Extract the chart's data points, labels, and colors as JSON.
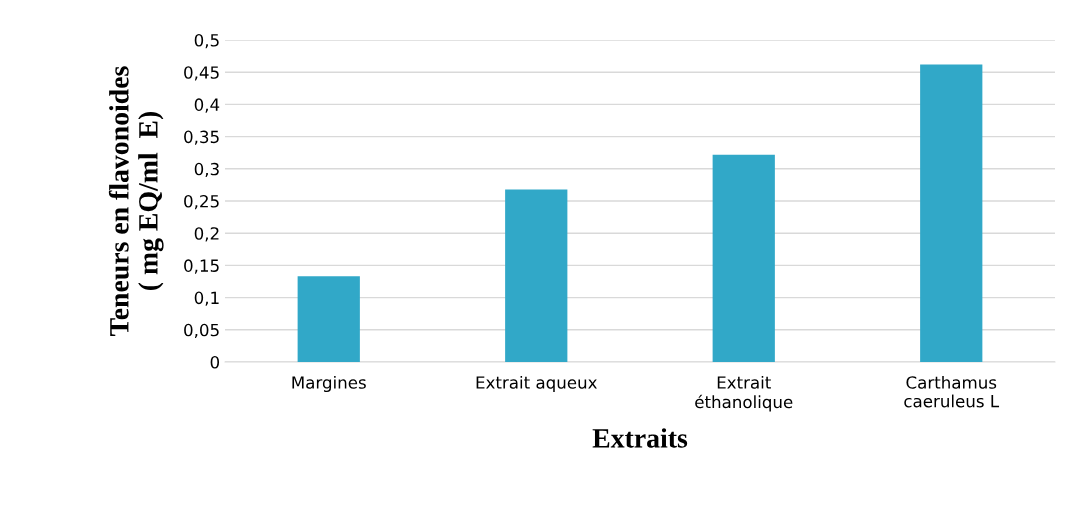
{
  "chart_data": {
    "type": "bar",
    "categories": [
      "Margines",
      "Extrait aqueux",
      "Extrait\néthanolique",
      "Carthamus\ncaeruleus L"
    ],
    "values": [
      0.133,
      0.268,
      0.322,
      0.462
    ],
    "color": "#31a8c8",
    "xlabel": "Extraits",
    "ylabel": "Teneurs en flavonoides\n( mg EQ/ml  E)",
    "ylim": [
      0,
      0.5
    ],
    "yticks": [
      0,
      {
        "value": 0.05,
        "label": "0,05"
      },
      {
        "value": 0.1,
        "label": "0,1"
      },
      {
        "value": 0.15,
        "label": "0,15"
      },
      {
        "value": 0.2,
        "label": "0,2"
      },
      {
        "value": 0.25,
        "label": "0,25"
      },
      {
        "value": 0.3,
        "label": "0,3"
      },
      {
        "value": 0.35,
        "label": "0,35"
      },
      {
        "value": 0.4,
        "label": "0,4"
      },
      {
        "value": 0.45,
        "label": "0,45"
      },
      {
        "value": 0.5,
        "label": "0,5"
      }
    ],
    "grid": "y"
  }
}
